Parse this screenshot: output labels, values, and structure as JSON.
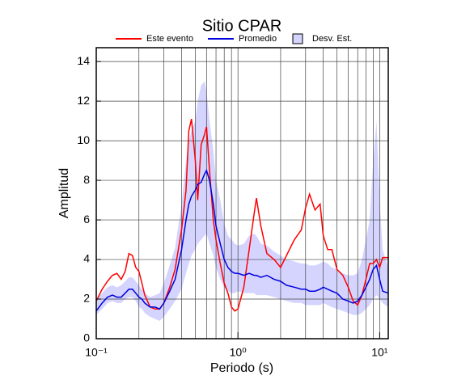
{
  "chart_data": {
    "type": "line",
    "title": "Sitio CPAR",
    "xlabel": "Periodo (s)",
    "ylabel": "Amplitud",
    "xscale": "log",
    "xlim": [
      0.1,
      11.5
    ],
    "ylim": [
      0,
      14.7
    ],
    "grid": true,
    "legend": "top",
    "xticks": [
      {
        "value": 0.1,
        "label": "10⁻¹"
      },
      {
        "value": 1,
        "label": "10⁰"
      },
      {
        "value": 10,
        "label": "10¹"
      }
    ],
    "xminorticks": [
      0.2,
      0.3,
      0.4,
      0.5,
      0.6,
      0.7,
      0.8,
      0.9,
      2,
      3,
      4,
      5,
      6,
      7,
      8,
      9
    ],
    "yticks": [
      0,
      2,
      4,
      6,
      8,
      10,
      12,
      14
    ],
    "x": [
      0.1,
      0.11,
      0.12,
      0.13,
      0.14,
      0.15,
      0.16,
      0.17,
      0.18,
      0.19,
      0.2,
      0.21,
      0.22,
      0.24,
      0.26,
      0.28,
      0.3,
      0.33,
      0.36,
      0.4,
      0.43,
      0.45,
      0.47,
      0.5,
      0.52,
      0.55,
      0.58,
      0.6,
      0.63,
      0.67,
      0.7,
      0.75,
      0.8,
      0.85,
      0.9,
      0.95,
      1.0,
      1.1,
      1.2,
      1.3,
      1.35,
      1.45,
      1.6,
      1.8,
      2.0,
      2.2,
      2.5,
      2.8,
      3.0,
      3.2,
      3.5,
      3.8,
      4.0,
      4.3,
      4.6,
      5.0,
      5.5,
      6.0,
      6.5,
      7.0,
      7.5,
      8.0,
      8.5,
      9.0,
      9.5,
      10,
      10.5,
      11.5
    ],
    "series": [
      {
        "name": "Este evento",
        "color": "#ff0000",
        "values": [
          1.9,
          2.5,
          2.9,
          3.2,
          3.3,
          3.0,
          3.4,
          4.3,
          4.2,
          3.6,
          3.4,
          2.8,
          2.2,
          1.6,
          1.5,
          1.5,
          1.8,
          2.6,
          3.5,
          5.5,
          7.5,
          10.5,
          11.1,
          9.0,
          7.0,
          9.8,
          10.3,
          10.7,
          8.5,
          6.0,
          5.0,
          3.8,
          2.8,
          2.3,
          1.6,
          1.4,
          1.5,
          2.6,
          4.5,
          6.3,
          7.1,
          5.7,
          4.3,
          4.0,
          3.6,
          4.2,
          5.0,
          5.5,
          6.6,
          7.3,
          6.5,
          6.8,
          5.2,
          4.5,
          4.5,
          3.5,
          3.2,
          2.6,
          1.9,
          1.7,
          2.2,
          3.0,
          3.8,
          3.8,
          4.0,
          3.6,
          4.1,
          4.1
        ]
      },
      {
        "name": "Promedio",
        "color": "#0000dd",
        "values": [
          1.4,
          1.8,
          2.1,
          2.2,
          2.1,
          2.1,
          2.3,
          2.5,
          2.5,
          2.3,
          2.1,
          2.0,
          1.8,
          1.6,
          1.6,
          1.5,
          1.8,
          2.4,
          3.0,
          4.5,
          6.0,
          6.8,
          7.2,
          7.5,
          7.8,
          7.9,
          8.3,
          8.5,
          8.0,
          6.8,
          5.7,
          4.8,
          4.0,
          3.6,
          3.4,
          3.3,
          3.3,
          3.2,
          3.3,
          3.2,
          3.2,
          3.1,
          3.2,
          3.0,
          2.9,
          2.7,
          2.6,
          2.5,
          2.5,
          2.4,
          2.4,
          2.5,
          2.6,
          2.5,
          2.4,
          2.3,
          2.0,
          1.9,
          1.8,
          1.9,
          2.2,
          2.6,
          3.0,
          3.5,
          3.7,
          3.0,
          2.4,
          2.3
        ]
      },
      {
        "name": "Desv. Est.",
        "color": "#d4d4ff",
        "lower": [
          1.2,
          1.5,
          1.8,
          1.9,
          1.8,
          1.8,
          2.0,
          2.1,
          2.1,
          1.9,
          1.6,
          1.5,
          1.3,
          1.1,
          1.0,
          0.9,
          1.1,
          1.5,
          1.9,
          2.5,
          3.3,
          3.8,
          4.2,
          4.5,
          4.8,
          5.0,
          5.2,
          5.3,
          4.8,
          4.2,
          3.6,
          3.0,
          2.6,
          2.4,
          2.3,
          2.3,
          2.4,
          2.3,
          2.3,
          2.3,
          2.2,
          2.2,
          2.2,
          2.1,
          2.0,
          1.9,
          1.8,
          1.8,
          1.7,
          1.7,
          1.7,
          1.7,
          1.8,
          1.7,
          1.6,
          1.5,
          1.4,
          1.3,
          1.2,
          1.2,
          1.3,
          1.5,
          1.7,
          2.0,
          2.2,
          2.0,
          1.8,
          1.6
        ],
        "upper": [
          2.0,
          2.3,
          2.6,
          2.7,
          2.6,
          2.7,
          2.9,
          3.1,
          3.1,
          2.9,
          2.7,
          2.5,
          2.3,
          2.1,
          2.2,
          2.3,
          2.8,
          3.7,
          4.6,
          6.8,
          9.0,
          10.0,
          10.5,
          11.0,
          12.0,
          12.8,
          13.0,
          12.5,
          11.0,
          9.5,
          8.0,
          7.0,
          5.8,
          5.2,
          5.0,
          4.8,
          4.7,
          4.8,
          5.2,
          5.3,
          5.2,
          4.8,
          4.7,
          4.4,
          4.2,
          4.0,
          3.9,
          3.8,
          3.8,
          3.7,
          3.7,
          3.8,
          3.9,
          3.8,
          3.6,
          3.5,
          3.3,
          3.2,
          3.2,
          3.3,
          4.0,
          5.0,
          6.0,
          9.0,
          11.0,
          7.0,
          4.5,
          3.6
        ]
      }
    ]
  }
}
